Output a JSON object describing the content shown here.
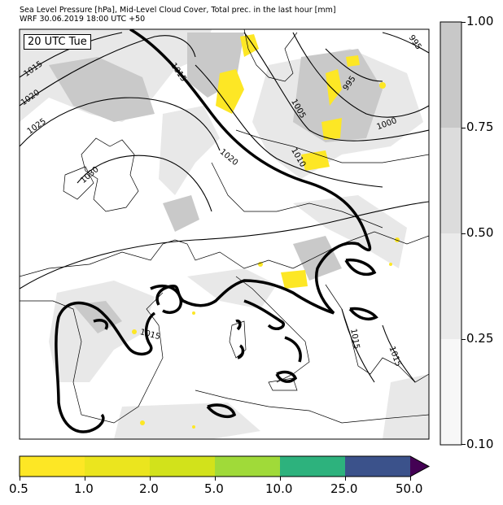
{
  "header": {
    "line1": "Sea Level Pressure [hPa], Mid-Level Cloud Cover, Total prec. in the last hour [mm]",
    "line2": "WRF 30.06.2019 18:00 UTC +50"
  },
  "map": {
    "time_label": "20 UTC Tue",
    "isobar_labels": [
      "995",
      "995",
      "1000",
      "1005",
      "1010",
      "1015",
      "1015",
      "1015",
      "1015",
      "1015",
      "1020",
      "1020",
      "1025",
      "1030"
    ],
    "colors": {
      "cloud_light": "#e6e6e6",
      "cloud_mid": "#cccccc",
      "precip": "#fde725",
      "coast": "#000000"
    }
  },
  "cloud_colorbar": {
    "ticks": [
      "1.00",
      "0.75",
      "0.50",
      "0.25",
      "0.10"
    ],
    "colors": [
      "#c8c8c8",
      "#dcdcdc",
      "#ebebeb",
      "#f7f7f7"
    ]
  },
  "precip_colorbar": {
    "ticks": [
      "0.5",
      "1.0",
      "2.0",
      "5.0",
      "10.0",
      "25.0",
      "50.0"
    ],
    "colors": [
      "#fde725",
      "#ebe51e",
      "#d2e21b",
      "#a0da39",
      "#2db27d",
      "#3b528b",
      "#440154"
    ]
  }
}
